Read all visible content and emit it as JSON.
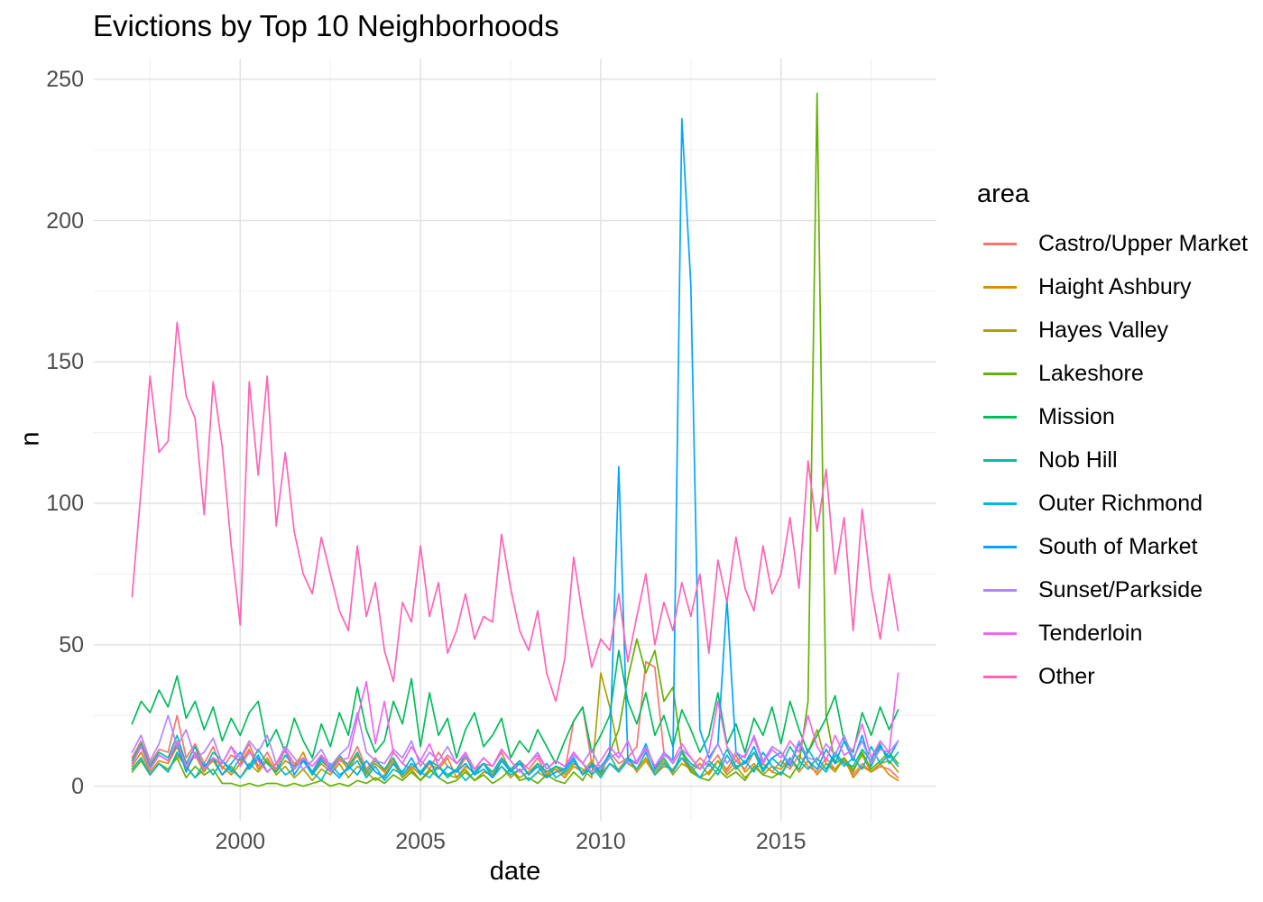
{
  "title": "Evictions by Top 10 Neighborhoods",
  "axes": {
    "x": {
      "label": "date",
      "tick_labels": [
        "2000",
        "2005",
        "2010",
        "2015"
      ],
      "tick_values": [
        2000,
        2005,
        2010,
        2015
      ],
      "minor_values": [
        1997.5,
        2002.5,
        2007.5,
        2012.5,
        2017.5
      ],
      "range": [
        1995.94,
        2019.31
      ]
    },
    "y": {
      "label": "n",
      "tick_labels": [
        "0",
        "50",
        "100",
        "150",
        "200",
        "250"
      ],
      "tick_values": [
        0,
        50,
        100,
        150,
        200,
        250
      ],
      "minor_values": [
        25,
        75,
        125,
        175,
        225
      ],
      "range": [
        -12.25,
        257.25
      ]
    }
  },
  "legend": {
    "title": "area",
    "position": "right"
  },
  "chart_data": {
    "type": "line",
    "title": "Evictions by Top 10 Neighborhoods",
    "xlabel": "date",
    "ylabel": "n",
    "xlim": [
      1997.0,
      2018.25
    ],
    "ylim": [
      0,
      250
    ],
    "grid": true,
    "legend_position": "right",
    "x": [
      1997.0,
      1997.25,
      1997.5,
      1997.75,
      1998.0,
      1998.25,
      1998.5,
      1998.75,
      1999.0,
      1999.25,
      1999.5,
      1999.75,
      2000.0,
      2000.25,
      2000.5,
      2000.75,
      2001.0,
      2001.25,
      2001.5,
      2001.75,
      2002.0,
      2002.25,
      2002.5,
      2002.75,
      2003.0,
      2003.25,
      2003.5,
      2003.75,
      2004.0,
      2004.25,
      2004.5,
      2004.75,
      2005.0,
      2005.25,
      2005.5,
      2005.75,
      2006.0,
      2006.25,
      2006.5,
      2006.75,
      2007.0,
      2007.25,
      2007.5,
      2007.75,
      2008.0,
      2008.25,
      2008.5,
      2008.75,
      2009.0,
      2009.25,
      2009.5,
      2009.75,
      2010.0,
      2010.25,
      2010.5,
      2010.75,
      2011.0,
      2011.25,
      2011.5,
      2011.75,
      2012.0,
      2012.25,
      2012.5,
      2012.75,
      2013.0,
      2013.25,
      2013.5,
      2013.75,
      2014.0,
      2014.25,
      2014.5,
      2014.75,
      2015.0,
      2015.25,
      2015.5,
      2015.75,
      2016.0,
      2016.25,
      2016.5,
      2016.75,
      2017.0,
      2017.25,
      2017.5,
      2017.75,
      2018.0,
      2018.25
    ],
    "series": [
      {
        "name": "Castro/Upper Market",
        "color": "#F8766D",
        "values": [
          10,
          16,
          8,
          13,
          12,
          25,
          10,
          15,
          8,
          14,
          6,
          11,
          9,
          15,
          7,
          12,
          6,
          13,
          8,
          10,
          5,
          11,
          7,
          9,
          8,
          14,
          6,
          10,
          5,
          12,
          8,
          6,
          9,
          6,
          12,
          7,
          5,
          10,
          6,
          8,
          7,
          12,
          5,
          9,
          6,
          10,
          4,
          7,
          5,
          23,
          28,
          8,
          6,
          12,
          8,
          10,
          14,
          44,
          42,
          12,
          8,
          13,
          6,
          10,
          7,
          11,
          5,
          9,
          6,
          12,
          8,
          5,
          9,
          6,
          11,
          7,
          5,
          10,
          6,
          9,
          4,
          8,
          5,
          7,
          6,
          3
        ]
      },
      {
        "name": "Haight Ashbury",
        "color": "#DB8E00",
        "values": [
          7,
          12,
          5,
          9,
          8,
          14,
          6,
          11,
          5,
          10,
          7,
          4,
          8,
          13,
          6,
          10,
          5,
          9,
          7,
          12,
          4,
          8,
          5,
          10,
          6,
          11,
          4,
          8,
          5,
          9,
          3,
          7,
          4,
          8,
          6,
          10,
          3,
          7,
          5,
          8,
          4,
          9,
          6,
          3,
          5,
          8,
          4,
          6,
          3,
          7,
          5,
          9,
          4,
          8,
          6,
          10,
          5,
          9,
          4,
          7,
          6,
          10,
          5,
          8,
          4,
          9,
          6,
          11,
          5,
          8,
          4,
          7,
          6,
          10,
          5,
          9,
          4,
          8,
          6,
          10,
          3,
          7,
          5,
          8,
          4,
          2
        ]
      },
      {
        "name": "Hayes Valley",
        "color": "#AEA200",
        "values": [
          6,
          10,
          4,
          8,
          5,
          11,
          7,
          3,
          6,
          9,
          4,
          7,
          3,
          8,
          5,
          9,
          4,
          7,
          3,
          6,
          2,
          6,
          4,
          8,
          3,
          7,
          5,
          2,
          4,
          8,
          3,
          6,
          2,
          5,
          7,
          4,
          3,
          6,
          2,
          5,
          4,
          7,
          3,
          6,
          2,
          5,
          3,
          7,
          4,
          8,
          6,
          3,
          40,
          28,
          12,
          8,
          6,
          10,
          5,
          9,
          4,
          8,
          6,
          3,
          5,
          9,
          4,
          7,
          3,
          6,
          8,
          5,
          4,
          9,
          6,
          12,
          20,
          8,
          5,
          10,
          6,
          11,
          5,
          8,
          9,
          5
        ]
      },
      {
        "name": "Lakeshore",
        "color": "#64B200",
        "values": [
          5,
          9,
          4,
          8,
          6,
          10,
          3,
          7,
          4,
          6,
          1,
          1,
          0,
          1,
          0,
          1,
          1,
          0,
          1,
          0,
          1,
          2,
          0,
          1,
          0,
          2,
          1,
          3,
          1,
          4,
          2,
          5,
          2,
          6,
          3,
          1,
          2,
          5,
          2,
          4,
          1,
          3,
          6,
          2,
          3,
          1,
          4,
          2,
          1,
          5,
          2,
          8,
          4,
          12,
          20,
          38,
          52,
          40,
          48,
          30,
          35,
          12,
          5,
          3,
          2,
          6,
          3,
          5,
          2,
          7,
          4,
          3,
          5,
          3,
          8,
          30,
          245,
          25,
          8,
          10,
          5,
          12,
          6,
          9,
          12,
          8
        ]
      },
      {
        "name": "Mission",
        "color": "#00BD5C",
        "values": [
          22,
          30,
          26,
          34,
          28,
          39,
          24,
          30,
          20,
          28,
          16,
          24,
          18,
          26,
          30,
          14,
          20,
          12,
          24,
          16,
          10,
          22,
          14,
          26,
          18,
          35,
          20,
          12,
          16,
          30,
          22,
          38,
          14,
          33,
          18,
          24,
          10,
          20,
          26,
          14,
          18,
          24,
          10,
          16,
          12,
          20,
          14,
          8,
          16,
          23,
          28,
          12,
          18,
          25,
          48,
          30,
          22,
          33,
          18,
          25,
          14,
          27,
          20,
          12,
          18,
          33,
          15,
          22,
          12,
          24,
          18,
          28,
          15,
          30,
          20,
          12,
          18,
          24,
          32,
          16,
          12,
          26,
          18,
          28,
          20,
          27
        ]
      },
      {
        "name": "Nob Hill",
        "color": "#00C1A7",
        "values": [
          9,
          15,
          7,
          12,
          10,
          18,
          8,
          14,
          6,
          12,
          9,
          5,
          10,
          7,
          13,
          8,
          5,
          11,
          7,
          9,
          4,
          9,
          6,
          11,
          7,
          12,
          5,
          9,
          6,
          10,
          4,
          8,
          5,
          9,
          7,
          3,
          6,
          11,
          4,
          8,
          5,
          10,
          6,
          9,
          4,
          8,
          5,
          7,
          6,
          12,
          8,
          4,
          7,
          11,
          5,
          9,
          8,
          14,
          6,
          10,
          5,
          12,
          8,
          6,
          9,
          6,
          13,
          7,
          8,
          12,
          5,
          10,
          7,
          14,
          9,
          6,
          10,
          6,
          12,
          8,
          7,
          13,
          9,
          15,
          8,
          12
        ]
      },
      {
        "name": "Outer Richmond",
        "color": "#00BADE",
        "values": [
          6,
          10,
          4,
          8,
          5,
          12,
          7,
          3,
          8,
          4,
          9,
          6,
          3,
          7,
          11,
          5,
          8,
          4,
          6,
          10,
          5,
          2,
          8,
          4,
          6,
          9,
          3,
          7,
          2,
          6,
          4,
          8,
          5,
          3,
          7,
          4,
          6,
          2,
          5,
          8,
          3,
          7,
          4,
          6,
          2,
          5,
          8,
          3,
          5,
          9,
          4,
          7,
          3,
          8,
          5,
          10,
          6,
          12,
          4,
          8,
          5,
          10,
          7,
          3,
          8,
          4,
          11,
          6,
          9,
          5,
          12,
          7,
          4,
          10,
          6,
          13,
          8,
          5,
          11,
          7,
          10,
          6,
          14,
          8,
          11,
          7
        ]
      },
      {
        "name": "South of Market",
        "color": "#00A6FF",
        "values": [
          8,
          14,
          6,
          11,
          9,
          15,
          5,
          12,
          7,
          10,
          4,
          8,
          12,
          6,
          10,
          5,
          8,
          13,
          4,
          9,
          5,
          10,
          6,
          3,
          7,
          4,
          9,
          5,
          3,
          8,
          5,
          10,
          4,
          9,
          3,
          7,
          5,
          8,
          4,
          6,
          3,
          9,
          5,
          8,
          4,
          7,
          3,
          5,
          6,
          10,
          4,
          8,
          5,
          12,
          113,
          10,
          8,
          15,
          6,
          12,
          9,
          236,
          177,
          20,
          10,
          15,
          66,
          12,
          8,
          14,
          6,
          10,
          12,
          7,
          15,
          9,
          6,
          13,
          8,
          16,
          9,
          18,
          7,
          14,
          10,
          16
        ]
      },
      {
        "name": "Sunset/Parkside",
        "color": "#B385FF",
        "values": [
          12,
          18,
          9,
          15,
          25,
          14,
          20,
          10,
          12,
          17,
          8,
          14,
          10,
          16,
          12,
          18,
          8,
          14,
          10,
          6,
          9,
          13,
          7,
          11,
          14,
          26,
          12,
          9,
          8,
          13,
          10,
          16,
          7,
          12,
          9,
          14,
          8,
          11,
          6,
          10,
          7,
          13,
          9,
          5,
          8,
          12,
          6,
          9,
          7,
          11,
          8,
          13,
          6,
          10,
          12,
          8,
          9,
          14,
          7,
          12,
          8,
          13,
          10,
          6,
          9,
          15,
          8,
          12,
          10,
          18,
          9,
          14,
          12,
          8,
          16,
          10,
          9,
          15,
          11,
          18,
          10,
          16,
          8,
          13,
          12,
          16
        ]
      },
      {
        "name": "Tenderloin",
        "color": "#EF67EB",
        "values": [
          8,
          14,
          6,
          11,
          9,
          16,
          7,
          12,
          6,
          10,
          8,
          14,
          7,
          12,
          9,
          5,
          8,
          13,
          6,
          10,
          7,
          11,
          5,
          9,
          10,
          24,
          37,
          15,
          30,
          12,
          8,
          14,
          9,
          15,
          7,
          11,
          8,
          12,
          6,
          10,
          7,
          13,
          9,
          5,
          8,
          11,
          6,
          9,
          7,
          12,
          8,
          5,
          9,
          14,
          10,
          16,
          8,
          13,
          7,
          11,
          9,
          15,
          10,
          6,
          12,
          30,
          14,
          9,
          11,
          17,
          8,
          13,
          10,
          16,
          12,
          25,
          14,
          9,
          18,
          11,
          13,
          22,
          10,
          16,
          12,
          40
        ]
      },
      {
        "name": "Other",
        "color": "#FF63B6",
        "values": [
          67,
          105,
          145,
          118,
          122,
          164,
          138,
          130,
          96,
          143,
          120,
          85,
          57,
          143,
          110,
          145,
          92,
          118,
          90,
          75,
          68,
          88,
          75,
          62,
          55,
          85,
          60,
          72,
          48,
          37,
          65,
          58,
          85,
          60,
          72,
          47,
          55,
          68,
          52,
          60,
          58,
          89,
          70,
          55,
          48,
          62,
          40,
          30,
          45,
          81,
          60,
          42,
          52,
          48,
          68,
          44,
          60,
          75,
          50,
          65,
          55,
          72,
          60,
          75,
          47,
          80,
          65,
          88,
          70,
          62,
          85,
          68,
          75,
          95,
          70,
          115,
          90,
          112,
          75,
          95,
          55,
          98,
          70,
          52,
          75,
          55
        ]
      }
    ]
  }
}
